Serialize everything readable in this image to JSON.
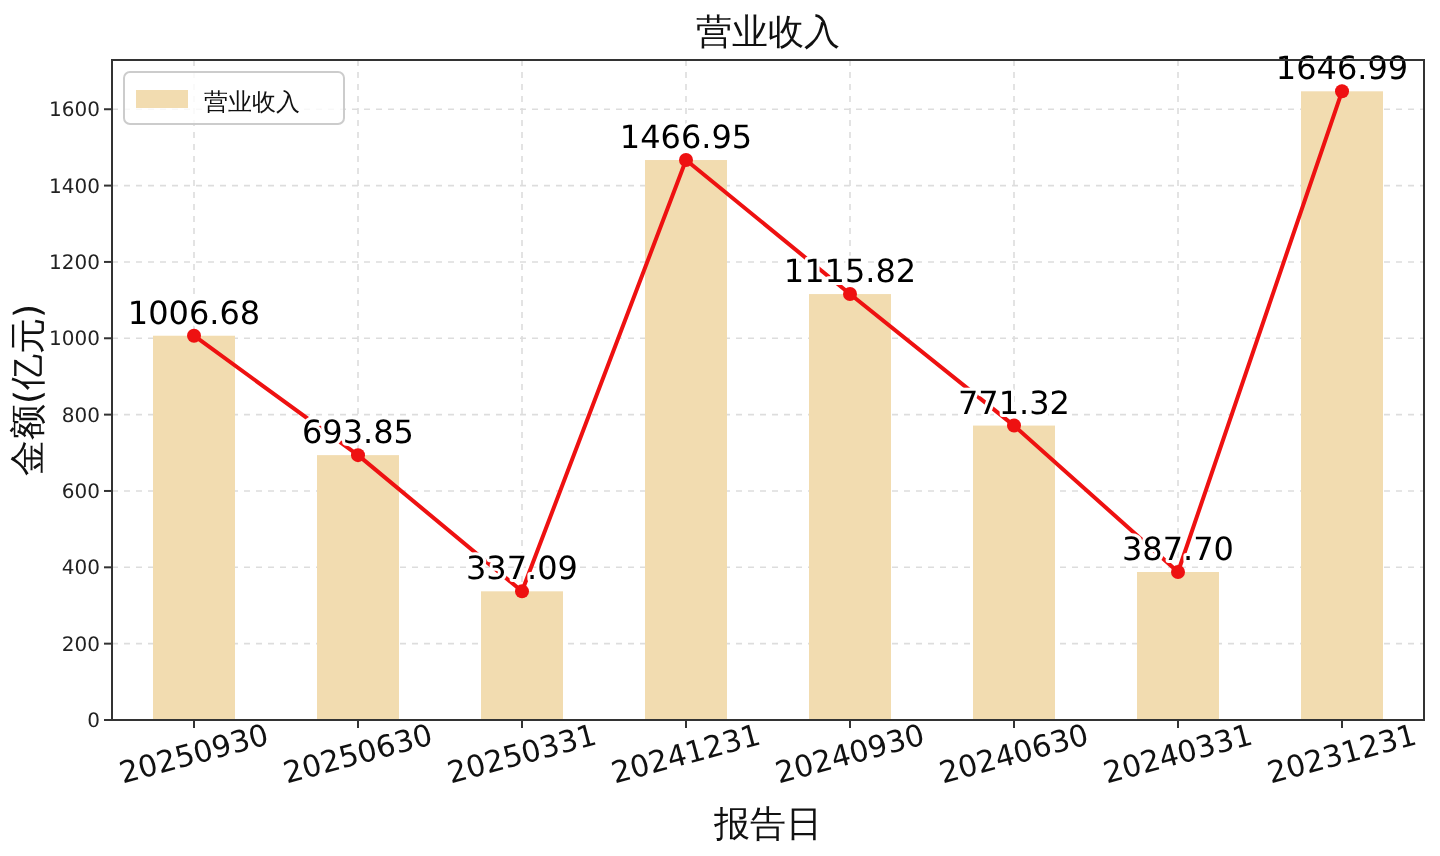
{
  "chart_data": {
    "type": "bar",
    "title": "营业收入",
    "xlabel": "报告日",
    "ylabel": "金额(亿元)",
    "categories": [
      "20250930",
      "20250630",
      "20250331",
      "20241231",
      "20240930",
      "20240630",
      "20240331",
      "20231231"
    ],
    "series": [
      {
        "name": "营业收入",
        "color": "#f2dcb0",
        "values": [
          1006.68,
          693.85,
          337.09,
          1466.95,
          1115.82,
          771.32,
          387.7,
          1646.99
        ]
      },
      {
        "type": "line",
        "color": "#ee1111",
        "values": [
          1006.68,
          693.85,
          337.09,
          1466.95,
          1115.82,
          771.32,
          387.7,
          1646.99
        ],
        "value_labels": [
          "1006.68",
          "693.85",
          "337.09",
          "1466.95",
          "1115.82",
          "771.32",
          "387.70",
          "1646.99"
        ]
      }
    ],
    "ylim": [
      0,
      1729
    ],
    "yticks": [
      0,
      200,
      400,
      600,
      800,
      1000,
      1200,
      1400,
      1600
    ],
    "grid": true,
    "legend": "top left",
    "marker": "circle",
    "line_style": "solid"
  }
}
